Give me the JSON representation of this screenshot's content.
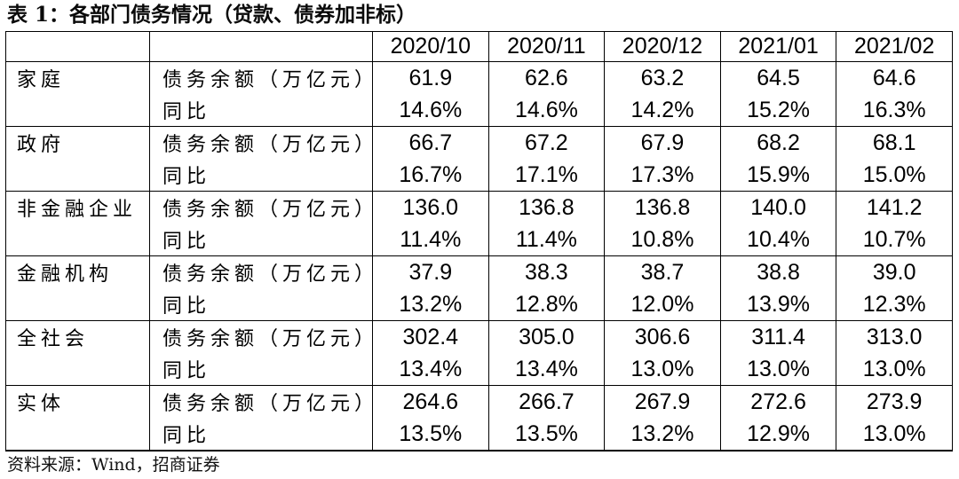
{
  "title": "表 1：各部门债务情况（贷款、债券加非标）",
  "table": {
    "columns": [
      "2020/10",
      "2020/11",
      "2020/12",
      "2021/01",
      "2021/02"
    ],
    "sectors": [
      {
        "name": "家庭",
        "rows": [
          {
            "metric": "债务余额（万亿元）",
            "values": [
              "61.9",
              "62.6",
              "63.2",
              "64.5",
              "64.6"
            ]
          },
          {
            "metric": "同比",
            "values": [
              "14.6%",
              "14.6%",
              "14.2%",
              "15.2%",
              "16.3%"
            ]
          }
        ]
      },
      {
        "name": "政府",
        "rows": [
          {
            "metric": "债务余额（万亿元）",
            "values": [
              "66.7",
              "67.2",
              "67.9",
              "68.2",
              "68.1"
            ]
          },
          {
            "metric": "同比",
            "values": [
              "16.7%",
              "17.1%",
              "17.3%",
              "15.9%",
              "15.0%"
            ]
          }
        ]
      },
      {
        "name": "非金融企业",
        "rows": [
          {
            "metric": "债务余额（万亿元）",
            "values": [
              "136.0",
              "136.8",
              "136.8",
              "140.0",
              "141.2"
            ]
          },
          {
            "metric": "同比",
            "values": [
              "11.4%",
              "11.4%",
              "10.8%",
              "10.4%",
              "10.7%"
            ]
          }
        ]
      },
      {
        "name": "金融机构",
        "rows": [
          {
            "metric": "债务余额（万亿元）",
            "values": [
              "37.9",
              "38.3",
              "38.7",
              "38.8",
              "39.0"
            ]
          },
          {
            "metric": "同比",
            "values": [
              "13.2%",
              "12.8%",
              "12.0%",
              "13.9%",
              "12.3%"
            ]
          }
        ]
      },
      {
        "name": "全社会",
        "rows": [
          {
            "metric": "债务余额（万亿元）",
            "values": [
              "302.4",
              "305.0",
              "306.6",
              "311.4",
              "313.0"
            ]
          },
          {
            "metric": "同比",
            "values": [
              "13.4%",
              "13.4%",
              "13.0%",
              "13.0%",
              "13.0%"
            ]
          }
        ]
      },
      {
        "name": "实体",
        "rows": [
          {
            "metric": "债务余额（万亿元）",
            "values": [
              "264.6",
              "266.7",
              "267.9",
              "272.6",
              "273.9"
            ]
          },
          {
            "metric": "同比",
            "values": [
              "13.5%",
              "13.5%",
              "13.2%",
              "12.9%",
              "13.0%"
            ]
          }
        ]
      }
    ]
  },
  "source": "资料来源：Wind，招商证券"
}
